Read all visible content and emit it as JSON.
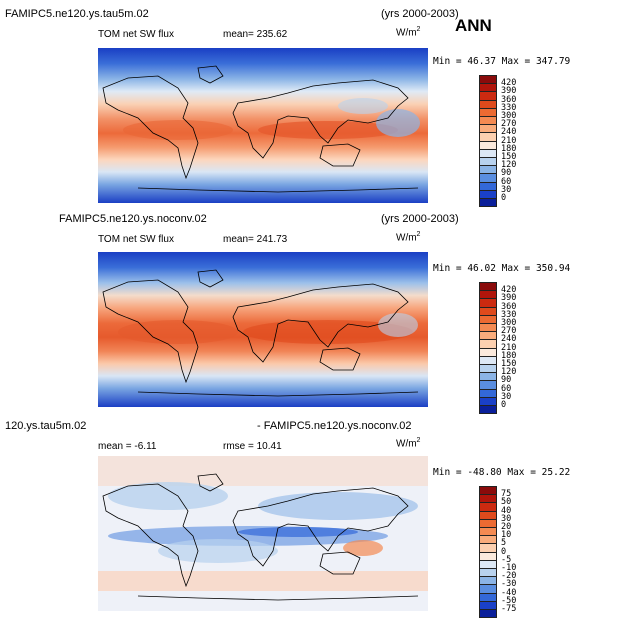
{
  "season": "ANN",
  "units_base": "W/m",
  "units_exp": "2",
  "panels": [
    {
      "case": "FAMIPC5.ne120.ys.tau5m.02",
      "years": "(yrs 2000-2003)",
      "field": "TOM net SW flux",
      "stat": "mean=  235.62",
      "minmax": "Min =  46.37 Max = 347.79",
      "scale": "sw"
    },
    {
      "case": "FAMIPC5.ne120.ys.noconv.02",
      "years": "(yrs 2000-2003)",
      "field": "TOM net SW flux",
      "stat": "mean=  241.73",
      "minmax": "Min =  46.02 Max = 350.94",
      "scale": "sw"
    },
    {
      "case": "120.ys.tau5m.02",
      "years": "- FAMIPC5.ne120.ys.noconv.02",
      "field": "mean =  -6.11",
      "stat": "rmse =  10.41",
      "minmax": "Min = -48.80 Max =  25.22",
      "scale": "diff"
    }
  ],
  "colorbars": {
    "sw": {
      "labels": [
        "420",
        "390",
        "360",
        "330",
        "300",
        "270",
        "240",
        "210",
        "180",
        "150",
        "120",
        "90",
        "60",
        "30",
        "0"
      ],
      "colors": [
        "#8a0b0b",
        "#b0150b",
        "#cc2a10",
        "#df4a1c",
        "#ec6a32",
        "#f48a52",
        "#f9ac7c",
        "#fcd0b0",
        "#fbeadd",
        "#dde8f5",
        "#b8d2ee",
        "#8bb4e6",
        "#5a8ee0",
        "#3368d8",
        "#1a40c8",
        "#0a1f9a"
      ]
    },
    "diff": {
      "labels": [
        "75",
        "50",
        "40",
        "30",
        "20",
        "10",
        "5",
        "0",
        "-5",
        "-10",
        "-20",
        "-30",
        "-40",
        "-50",
        "-75"
      ],
      "colors": [
        "#8a0b0b",
        "#b0150b",
        "#cc2a10",
        "#df4a1c",
        "#ec6a32",
        "#f48a52",
        "#f9ac7c",
        "#fcd0b0",
        "#fbeadd",
        "#dde8f5",
        "#b8d2ee",
        "#8bb4e6",
        "#5a8ee0",
        "#3368d8",
        "#1a40c8",
        "#0a1f9a"
      ]
    }
  }
}
